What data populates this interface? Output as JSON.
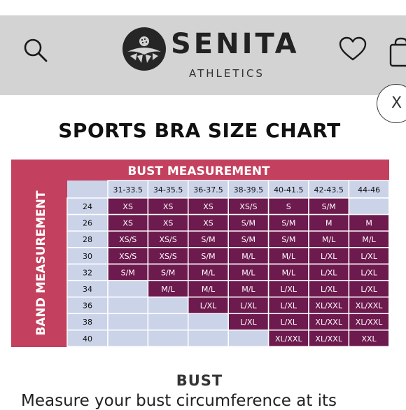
{
  "header": {
    "brand_name": "SENITA",
    "brand_subtitle": "ATHLETICS",
    "background": "#d3d3d3"
  },
  "icons": {
    "search": "search-icon",
    "heart": "heart-icon",
    "cart": "cart-icon",
    "logo": "lotus-logo"
  },
  "close_button": {
    "label": "X"
  },
  "page": {
    "title": "SPORTS BRA SIZE CHART"
  },
  "size_chart": {
    "top_header": "BUST MEASUREMENT",
    "side_header": "BAND MEASUREMENT",
    "columns": [
      "31-33.5",
      "34-35.5",
      "36-37.5",
      "38-39.5",
      "40-41.5",
      "42-43.5",
      "44-46"
    ],
    "rows": [
      {
        "band": "24",
        "cells": [
          "XS",
          "XS",
          "XS",
          "XS/S",
          "S",
          "S/M",
          ""
        ]
      },
      {
        "band": "26",
        "cells": [
          "XS",
          "XS",
          "XS",
          "S/M",
          "S/M",
          "M",
          "M"
        ]
      },
      {
        "band": "28",
        "cells": [
          "XS/S",
          "XS/S",
          "S/M",
          "S/M",
          "S/M",
          "M/L",
          "M/L"
        ]
      },
      {
        "band": "30",
        "cells": [
          "XS/S",
          "XS/S",
          "S/M",
          "M/L",
          "M/L",
          "L/XL",
          "L/XL"
        ]
      },
      {
        "band": "32",
        "cells": [
          "S/M",
          "S/M",
          "M/L",
          "M/L",
          "M/L",
          "L/XL",
          "L/XL"
        ]
      },
      {
        "band": "34",
        "cells": [
          "",
          "M/L",
          "M/L",
          "M/L",
          "L/XL",
          "L/XL",
          "L/XL"
        ]
      },
      {
        "band": "36",
        "cells": [
          "",
          "",
          "L/XL",
          "L/XL",
          "L/XL",
          "XL/XXL",
          "XL/XXL"
        ]
      },
      {
        "band": "38",
        "cells": [
          "",
          "",
          "",
          "L/XL",
          "L/XL",
          "XL/XXL",
          "XL/XXL"
        ]
      },
      {
        "band": "40",
        "cells": [
          "",
          "",
          "",
          "",
          "XL/XXL",
          "XL/XXL",
          "XXL"
        ]
      }
    ],
    "colors": {
      "header_bar": "#c4405f",
      "label_fill": "#cbd3e8",
      "filled_cell": "#6d1a4e",
      "empty_cell": "#cbd3e8",
      "grid_line": "#ffffff"
    }
  },
  "section": {
    "title": "BUST",
    "text": "Measure your bust circumference at its"
  }
}
